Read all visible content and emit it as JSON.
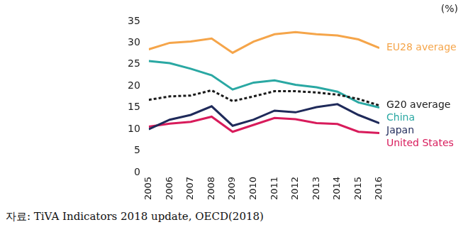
{
  "chart_data": {
    "type": "line",
    "ylabel": "(%)",
    "source": "자료: TiVA Indicators 2018 update, OECD(2018)",
    "categories": [
      "2005",
      "2006",
      "2007",
      "2008",
      "2009",
      "2010",
      "2011",
      "2012",
      "2013",
      "2014",
      "2015",
      "2016"
    ],
    "series": [
      {
        "name": "EU28 average",
        "color": "#f5a54a",
        "line_style": "solid",
        "values": [
          28.5,
          30.0,
          30.3,
          31.0,
          27.7,
          30.3,
          32.0,
          32.5,
          32.0,
          31.7,
          30.8,
          28.8
        ]
      },
      {
        "name": "G20 average",
        "color": "#1a1a1a",
        "line_style": "dashed",
        "values": [
          16.8,
          17.6,
          17.8,
          19.0,
          16.5,
          17.6,
          18.8,
          18.8,
          18.5,
          18.0,
          17.0,
          15.5
        ]
      },
      {
        "name": "China",
        "color": "#2aa8a3",
        "line_style": "solid",
        "values": [
          25.8,
          25.3,
          24.0,
          22.5,
          19.2,
          20.8,
          21.3,
          20.3,
          19.7,
          18.7,
          16.2,
          15.0
        ]
      },
      {
        "name": "Japan",
        "color": "#1f2a5a",
        "line_style": "solid",
        "values": [
          10.0,
          12.2,
          13.3,
          15.3,
          10.8,
          12.2,
          14.3,
          13.9,
          15.1,
          15.8,
          13.3,
          11.4
        ]
      },
      {
        "name": "United States",
        "color": "#d81b5b",
        "line_style": "solid",
        "values": [
          10.6,
          11.3,
          11.7,
          12.9,
          9.4,
          11.0,
          12.6,
          12.3,
          11.4,
          11.2,
          9.4,
          9.1
        ]
      }
    ],
    "ylim": [
      0,
      35
    ],
    "yticks": [
      0,
      5,
      10,
      15,
      20,
      25,
      30,
      35
    ],
    "grid": false
  }
}
